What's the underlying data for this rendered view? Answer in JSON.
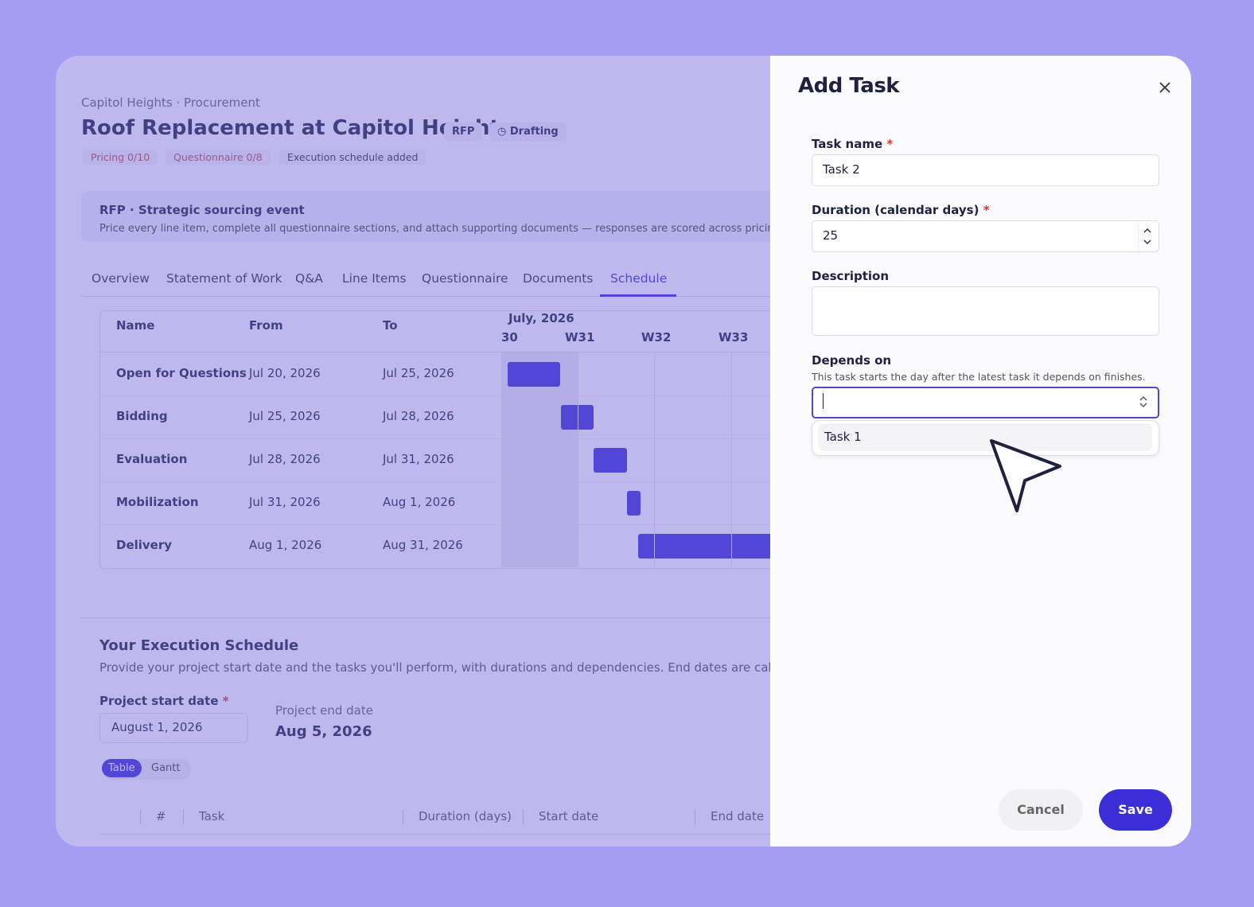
{
  "header": {
    "breadcrumb": "Capitol Heights · Procurement",
    "title": "Roof Replacement at Capitol Heights",
    "badges": [
      "RFP",
      "Drafting"
    ],
    "status": [
      "Pricing 0/10",
      "Questionnaire 0/8",
      "Execution schedule added"
    ]
  },
  "banner": {
    "title": "RFP · Strategic sourcing event",
    "text": "Price every line item, complete all questionnaire sections, and attach supporting documents — responses are scored across pricing, fi"
  },
  "tabs": {
    "items": [
      "Overview",
      "Statement of Work",
      "Q&A",
      "Line Items",
      "Questionnaire",
      "Documents",
      "Schedule"
    ],
    "active": "Schedule"
  },
  "gantt": {
    "columns": [
      "Name",
      "From",
      "To"
    ],
    "month": "July, 2026",
    "weeks": [
      "30",
      "W31",
      "W32",
      "W33"
    ],
    "rows": [
      {
        "name": "Open for Questions",
        "from": "Jul 20, 2026",
        "to": "Jul 25, 2026"
      },
      {
        "name": "Bidding",
        "from": "Jul 25, 2026",
        "to": "Jul 28, 2026"
      },
      {
        "name": "Evaluation",
        "from": "Jul 28, 2026",
        "to": "Jul 31, 2026"
      },
      {
        "name": "Mobilization",
        "from": "Jul 31, 2026",
        "to": "Aug 1, 2026"
      },
      {
        "name": "Delivery",
        "from": "Aug 1, 2026",
        "to": "Aug 31, 2026"
      }
    ]
  },
  "execution": {
    "title": "Your Execution Schedule",
    "text": "Provide your project start date and the tasks you'll perform, with durations and dependencies. End dates are calculate",
    "start_label": "Project start date",
    "start_value": "August 1, 2026",
    "end_label": "Project end date",
    "end_value": "Aug 5, 2026",
    "toggle": [
      "Table",
      "Gantt"
    ],
    "table_columns": [
      "#",
      "Task",
      "Duration (days)",
      "Start date",
      "End date"
    ]
  },
  "dialog": {
    "title": "Add Task",
    "required": "*",
    "task_name_label": "Task name",
    "task_name_value": "Task 2",
    "duration_label": "Duration (calendar days)",
    "duration_value": "25",
    "description_label": "Description",
    "depends_label": "Depends on",
    "depends_help": "This task starts the day after the latest task it depends on finishes.",
    "options": [
      "Task 1"
    ],
    "cancel": "Cancel",
    "save": "Save"
  }
}
